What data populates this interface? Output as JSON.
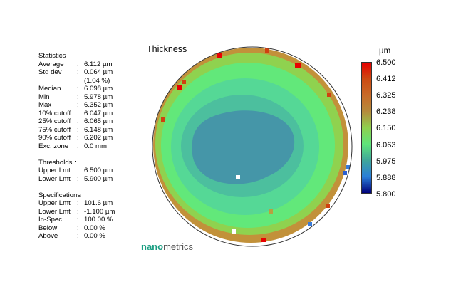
{
  "map_title": "Thickness",
  "statistics": {
    "heading": "Statistics",
    "rows": [
      {
        "label": "Average",
        "value": "6.112 µm"
      },
      {
        "label": "Std dev",
        "value": "0.064 µm"
      },
      {
        "label": "",
        "value": "(1.04 %)"
      },
      {
        "label": "Median",
        "value": "6.098 µm"
      },
      {
        "label": "Min",
        "value": "5.978 µm"
      },
      {
        "label": "Max",
        "value": "6.352 µm"
      },
      {
        "label": "10% cutoff",
        "value": "6.047 µm"
      },
      {
        "label": "25% cutoff",
        "value": "6.065 µm"
      },
      {
        "label": "75% cutoff",
        "value": "6.148 µm"
      },
      {
        "label": "90% cutoff",
        "value": "6.202 µm"
      },
      {
        "label": "Exc. zone",
        "value": "0.0 mm"
      }
    ]
  },
  "thresholds": {
    "heading": "Thresholds :",
    "rows": [
      {
        "label": "Upper Lmt",
        "value": "6.500 µm"
      },
      {
        "label": "Lower Lmt",
        "value": "5.900 µm"
      }
    ]
  },
  "specifications": {
    "heading": "Specifications",
    "rows": [
      {
        "label": "Upper Lmt",
        "value": "101.6 µm"
      },
      {
        "label": "Lower Lmt",
        "value": "-1.100 µm"
      },
      {
        "label": "In-Spec",
        "value": "100.00 %"
      },
      {
        "label": "Below",
        "value": "0.00 %"
      },
      {
        "label": "Above",
        "value": "0.00 %"
      }
    ]
  },
  "colorbar": {
    "unit": "µm",
    "labels": [
      "6.500",
      "6.412",
      "6.325",
      "6.238",
      "6.150",
      "6.063",
      "5.975",
      "5.888",
      "5.800"
    ]
  },
  "brand": {
    "part1": "nano",
    "part2": "metrics"
  }
}
